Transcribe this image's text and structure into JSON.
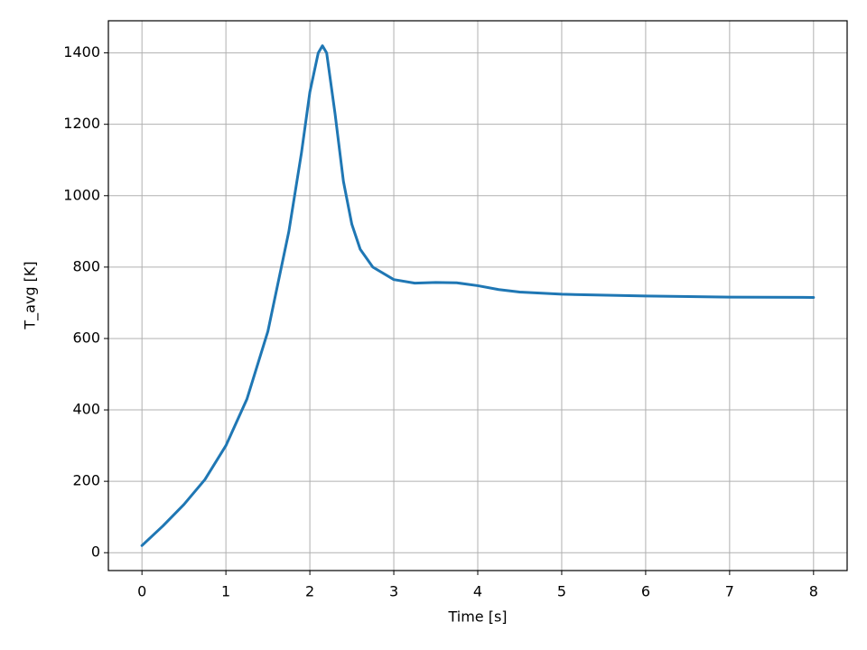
{
  "chart_data": {
    "type": "line",
    "xlabel": "Time [s]",
    "ylabel": "T_avg [K]",
    "x": [
      0,
      0.25,
      0.5,
      0.75,
      1.0,
      1.25,
      1.5,
      1.75,
      1.9,
      2.0,
      2.1,
      2.15,
      2.2,
      2.3,
      2.4,
      2.5,
      2.6,
      2.75,
      3.0,
      3.25,
      3.5,
      3.75,
      4.0,
      4.25,
      4.5,
      5.0,
      6.0,
      7.0,
      8.0
    ],
    "series": [
      {
        "color": "#1f77b4",
        "values": [
          20,
          75,
          135,
          205,
          300,
          430,
          620,
          900,
          1120,
          1290,
          1400,
          1420,
          1400,
          1230,
          1040,
          920,
          850,
          800,
          765,
          755,
          757,
          756,
          748,
          737,
          730,
          724,
          719,
          716,
          715
        ]
      }
    ],
    "xlim": [
      -0.4,
      8.4
    ],
    "ylim": [
      -50,
      1490
    ],
    "xticks": [
      0,
      1,
      2,
      3,
      4,
      5,
      6,
      7,
      8
    ],
    "yticks": [
      0,
      200,
      400,
      600,
      800,
      1000,
      1200,
      1400
    ],
    "grid": true
  }
}
